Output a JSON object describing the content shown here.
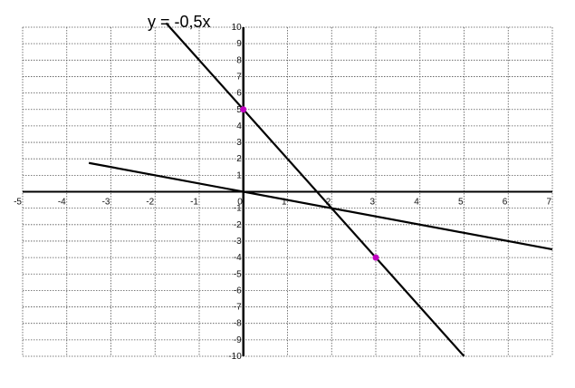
{
  "chart_data": {
    "type": "line",
    "title": "y = -0,5x",
    "xlabel": "",
    "ylabel": "",
    "xlim": [
      -5,
      7
    ],
    "ylim": [
      -10,
      10
    ],
    "grid": true,
    "x_ticks": [
      "-5",
      "-4",
      "-3",
      "-2",
      "-1",
      "0",
      "1",
      "2",
      "3",
      "4",
      "5",
      "6",
      "7"
    ],
    "y_ticks": [
      "-10",
      "-9",
      "-8",
      "-7",
      "-6",
      "-5",
      "-4",
      "-3",
      "-2",
      "-1",
      "0",
      "1",
      "2",
      "3",
      "4",
      "5",
      "6",
      "7",
      "8",
      "9",
      "10"
    ],
    "series": [
      {
        "x": [
          -3.5,
          7
        ],
        "y": [
          1.75,
          -3.5
        ],
        "color": "#000000"
      },
      {
        "x": [
          -1.75,
          5
        ],
        "y": [
          10.25,
          -10
        ],
        "color": "#000000"
      }
    ],
    "points": [
      {
        "x": 0,
        "y": 5,
        "color": "#c000c0"
      },
      {
        "x": 3,
        "y": -4,
        "color": "#c000c0"
      }
    ]
  }
}
